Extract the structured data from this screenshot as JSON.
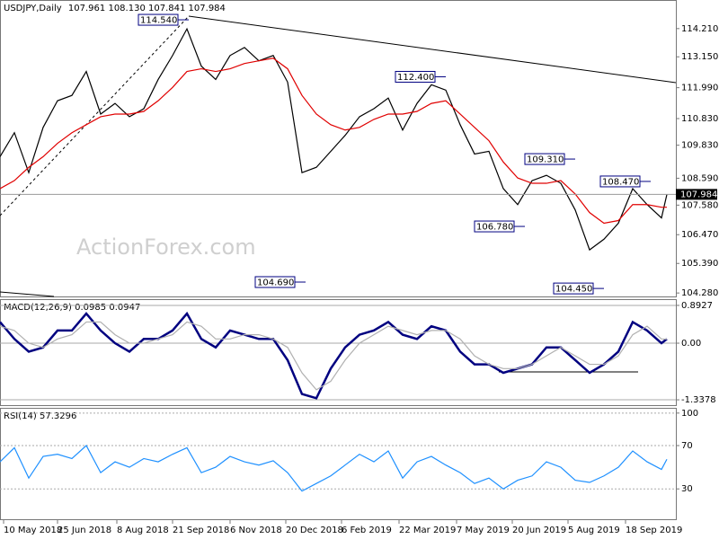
{
  "chart_data": [
    {
      "type": "line",
      "title": "USDJPY,Daily",
      "ohlc": [
        107.961,
        {
          "value": 108.13,
          "label": "108.130"
        },
        107.841,
        107.984
      ],
      "watermark": "ActionForex.com",
      "x": [
        0,
        8,
        16,
        24,
        32,
        40,
        48,
        56,
        64,
        72,
        80,
        88,
        96,
        104,
        112,
        120,
        128,
        136,
        144,
        152,
        160,
        168,
        176,
        184,
        192,
        200,
        208,
        216,
        224,
        232,
        240,
        248,
        256,
        264,
        272,
        280,
        288,
        296,
        304,
        312,
        320,
        328,
        336,
        344,
        352,
        360,
        368,
        371
      ],
      "xlim": [
        0,
        376
      ],
      "xticks": [
        {
          "value": 2,
          "label": "10 May 2018"
        },
        {
          "value": 32,
          "label": "25 Jun 2018"
        },
        {
          "value": 65,
          "label": "8 Aug 2018"
        },
        {
          "value": 96,
          "label": "21 Sep 2018"
        },
        {
          "value": 128,
          "label": "6 Nov 2018"
        },
        {
          "value": 159,
          "label": "20 Dec 2018"
        },
        {
          "value": 190,
          "label": "6 Feb 2019"
        },
        {
          "value": 222,
          "label": "22 Mar 2019"
        },
        {
          "value": 254,
          "label": "7 May 2019"
        },
        {
          "value": 285,
          "label": "20 Jun 2019"
        },
        {
          "value": 316,
          "label": "5 Aug 2019"
        },
        {
          "value": 348,
          "label": "18 Sep 2019"
        }
      ],
      "ylim": [
        104.15,
        115.25
      ],
      "yticks": [
        {
          "value": 114.21,
          "label": "114.210"
        },
        {
          "value": 113.15,
          "label": "113.150"
        },
        {
          "value": 111.99,
          "label": "111.990"
        },
        {
          "value": 110.83,
          "label": "110.830"
        },
        {
          "value": 109.83,
          "label": "109.830"
        },
        {
          "value": 108.59,
          "label": "108.590"
        },
        {
          "value": 107.58,
          "label": "107.580"
        },
        {
          "value": 106.47,
          "label": "106.470"
        },
        {
          "value": 105.39,
          "label": "105.390"
        },
        {
          "value": 104.28,
          "label": "104.280"
        }
      ],
      "series": [
        {
          "color": "#000000",
          "values": [
            109.4,
            110.3,
            108.8,
            110.5,
            111.5,
            111.7,
            112.6,
            111.0,
            111.4,
            110.9,
            111.2,
            112.3,
            113.2,
            114.2,
            112.8,
            112.3,
            113.2,
            113.5,
            113.0,
            113.2,
            112.2,
            108.8,
            109.0,
            109.6,
            110.2,
            110.9,
            111.2,
            111.6,
            110.4,
            111.4,
            112.1,
            111.9,
            110.6,
            109.5,
            109.6,
            108.2,
            107.6,
            108.5,
            108.7,
            108.4,
            107.4,
            105.9,
            106.3,
            106.9,
            108.2,
            107.6,
            107.1,
            107.98
          ]
        },
        {
          "color": "#e00000",
          "values": [
            108.2,
            108.5,
            109.0,
            109.4,
            109.9,
            110.3,
            110.6,
            110.9,
            111.0,
            111.0,
            111.1,
            111.5,
            112.0,
            112.6,
            112.7,
            112.6,
            112.7,
            112.9,
            113.0,
            113.1,
            112.7,
            111.7,
            111.0,
            110.6,
            110.4,
            110.5,
            110.8,
            111.0,
            111.0,
            111.1,
            111.4,
            111.5,
            111.0,
            110.5,
            110.0,
            109.2,
            108.6,
            108.4,
            108.4,
            108.5,
            108.0,
            107.3,
            106.9,
            107.0,
            107.6,
            107.6,
            107.5,
            107.5
          ]
        }
      ],
      "annotations": [
        {
          "value": 114.54,
          "label": "114.540",
          "x": 105
        },
        {
          "value": 112.4,
          "label": "112.400",
          "x": 248
        },
        {
          "value": 109.31,
          "label": "109.310",
          "x": 320
        },
        {
          "value": 108.47,
          "label": "108.470",
          "x": 362
        },
        {
          "value": 106.78,
          "label": "106.780",
          "x": 292
        },
        {
          "value": 104.69,
          "label": "104.690",
          "x": 170
        },
        {
          "value": 104.45,
          "label": "104.450",
          "x": 336
        }
      ]
    },
    {
      "type": "line",
      "title": "MACD(12,26,9)",
      "ylim": [
        -1.464,
        1.019
      ],
      "yticks": [
        0.8927,
        {
          "value": 0,
          "label": "0.00"
        },
        -1.3378
      ],
      "series": [
        {
          "color": "#000080",
          "values": [
            0.5,
            0.1,
            -0.2,
            -0.1,
            0.3,
            0.3,
            0.7,
            0.3,
            0.0,
            -0.2,
            0.1,
            0.1,
            0.3,
            0.7,
            0.1,
            -0.1,
            0.3,
            0.2,
            0.1,
            0.1,
            -0.4,
            -1.2,
            -1.3,
            -0.6,
            -0.1,
            0.2,
            0.3,
            0.5,
            0.2,
            0.1,
            0.4,
            0.3,
            -0.2,
            -0.5,
            -0.5,
            -0.7,
            -0.6,
            -0.5,
            -0.1,
            -0.1,
            -0.4,
            -0.7,
            -0.5,
            -0.2,
            0.5,
            0.3,
            0.0,
            0.0985
          ]
        },
        {
          "color": "#b0b0b0",
          "values": [
            0.4,
            0.3,
            0.0,
            -0.1,
            0.1,
            0.2,
            0.5,
            0.5,
            0.2,
            0.0,
            0.0,
            0.1,
            0.2,
            0.5,
            0.4,
            0.1,
            0.1,
            0.2,
            0.2,
            0.1,
            -0.1,
            -0.7,
            -1.1,
            -0.9,
            -0.4,
            0.0,
            0.2,
            0.4,
            0.3,
            0.2,
            0.3,
            0.3,
            0.1,
            -0.3,
            -0.5,
            -0.6,
            -0.6,
            -0.5,
            -0.3,
            -0.1,
            -0.3,
            -0.5,
            -0.5,
            -0.3,
            0.2,
            0.4,
            0.1,
            0.0947
          ]
        }
      ]
    },
    {
      "type": "line",
      "title": "RSI(14)",
      "ylim": [
        2,
        104
      ],
      "yticks": [
        100,
        70,
        30
      ],
      "series": [
        {
          "color": "#1e90ff",
          "values": [
            55,
            68,
            40,
            60,
            62,
            58,
            70,
            45,
            55,
            50,
            58,
            55,
            62,
            68,
            45,
            50,
            60,
            55,
            52,
            56,
            45,
            28,
            35,
            42,
            52,
            62,
            55,
            65,
            40,
            55,
            60,
            52,
            45,
            35,
            40,
            30,
            38,
            42,
            55,
            50,
            38,
            36,
            42,
            50,
            65,
            55,
            48,
            57.3296
          ]
        }
      ]
    }
  ]
}
